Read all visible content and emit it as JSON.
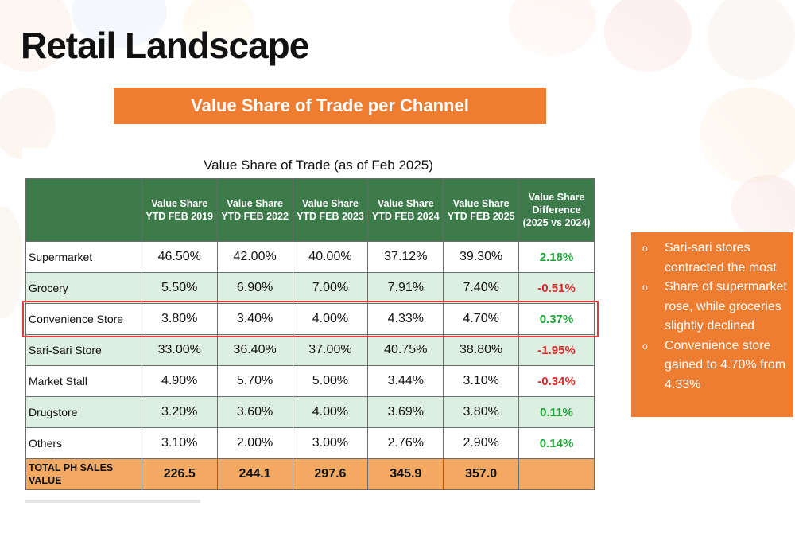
{
  "title": "Retail Landscape",
  "banner": "Value Share of Trade per Channel",
  "table": {
    "title": "Value Share of Trade (as of Feb 2025)",
    "headers": [
      "",
      "Value Share YTD FEB 2019",
      "Value Share YTD FEB 2022",
      "Value Share YTD FEB 2023",
      "Value Share YTD FEB 2024",
      "Value Share YTD FEB 2025",
      "Value Share Difference (2025 vs 2024)"
    ],
    "rows": [
      {
        "channel": "Supermarket",
        "v2019": "46.50%",
        "v2022": "42.00%",
        "v2023": "40.00%",
        "v2024": "37.12%",
        "v2025": "39.30%",
        "diff": "2.18%"
      },
      {
        "channel": "Grocery",
        "v2019": "5.50%",
        "v2022": "6.90%",
        "v2023": "7.00%",
        "v2024": "7.91%",
        "v2025": "7.40%",
        "diff": "-0.51%"
      },
      {
        "channel": "Convenience Store",
        "v2019": "3.80%",
        "v2022": "3.40%",
        "v2023": "4.00%",
        "v2024": "4.33%",
        "v2025": "4.70%",
        "diff": "0.37%"
      },
      {
        "channel": "Sari-Sari Store",
        "v2019": "33.00%",
        "v2022": "36.40%",
        "v2023": "37.00%",
        "v2024": "40.75%",
        "v2025": "38.80%",
        "diff": "-1.95%"
      },
      {
        "channel": "Market Stall",
        "v2019": "4.90%",
        "v2022": "5.70%",
        "v2023": "5.00%",
        "v2024": "3.44%",
        "v2025": "3.10%",
        "diff": "-0.34%"
      },
      {
        "channel": "Drugstore",
        "v2019": "3.20%",
        "v2022": "3.60%",
        "v2023": "4.00%",
        "v2024": "3.69%",
        "v2025": "3.80%",
        "diff": "0.11%"
      },
      {
        "channel": "Others",
        "v2019": "3.10%",
        "v2022": "2.00%",
        "v2023": "3.00%",
        "v2024": "2.76%",
        "v2025": "2.90%",
        "diff": "0.14%"
      }
    ],
    "total": {
      "label": "TOTAL PH SALES VALUE",
      "v2019": "226.5",
      "v2022": "244.1",
      "v2023": "297.6",
      "v2024": "345.9",
      "v2025": "357.0",
      "diff": ""
    }
  },
  "notes": [
    "Sari-sari stores contracted the most",
    "Share of supermarket rose, while groceries slightly declined",
    "Convenience store gained to 4.70% from 4.33%"
  ],
  "colors": {
    "accent_orange": "#ee7d31",
    "header_green": "#3d7b4a",
    "row_green": "#dcefe0",
    "total_orange": "#f3a962",
    "positive": "#22a33a",
    "negative": "#e0282a",
    "highlight_red": "#e33b3b"
  }
}
